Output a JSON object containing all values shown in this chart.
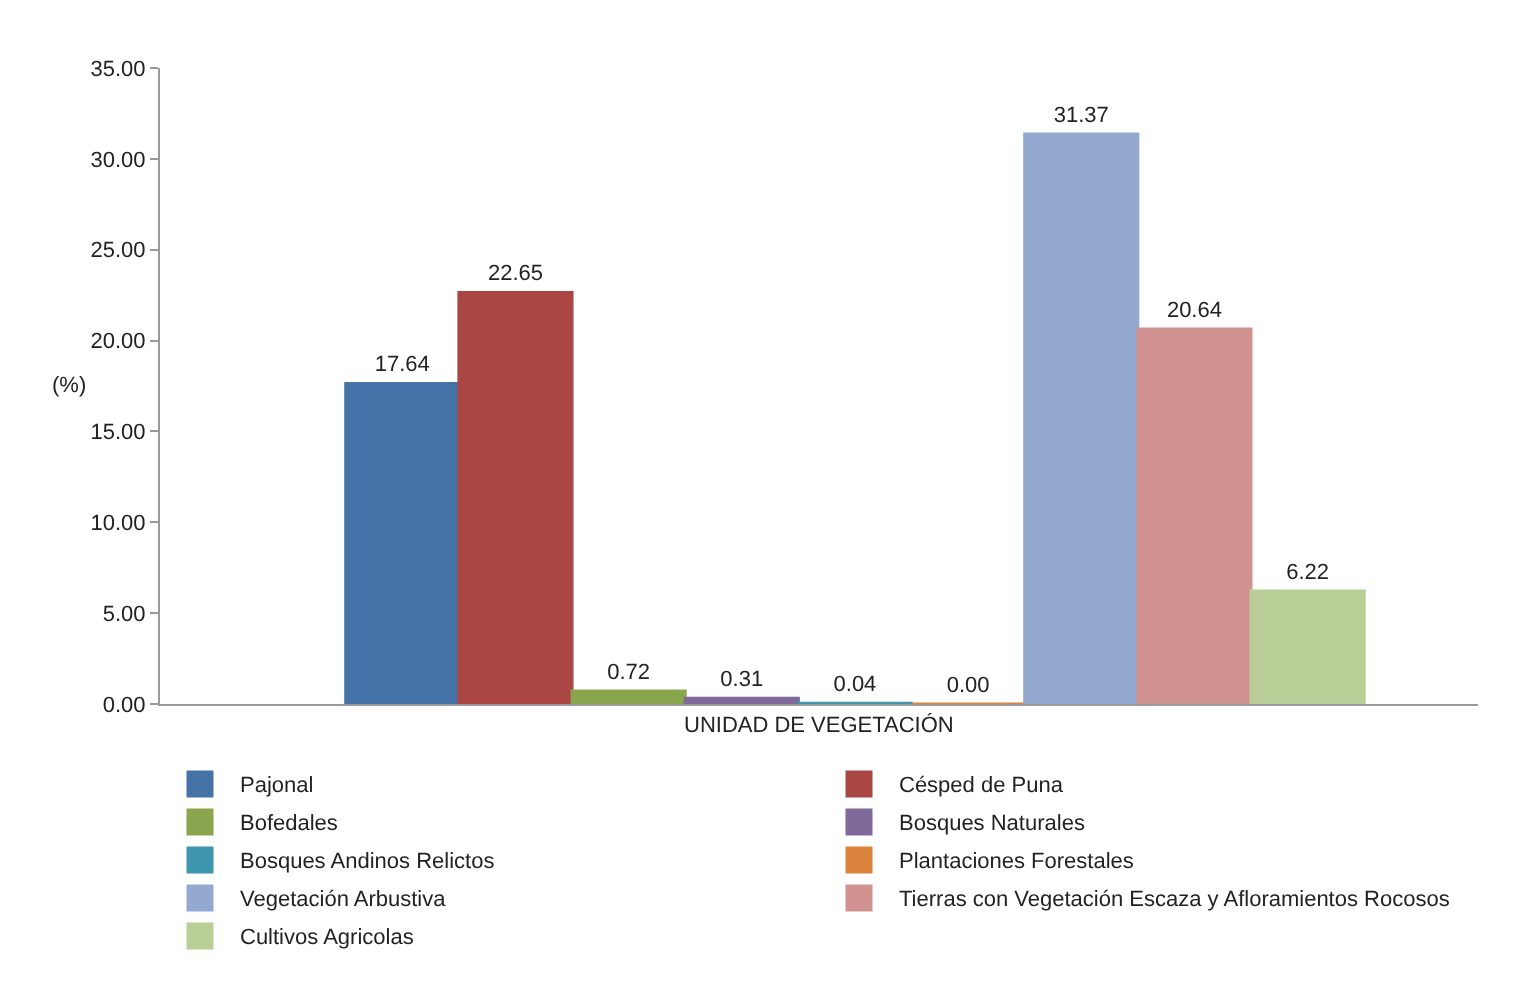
{
  "chart_data": {
    "type": "bar",
    "xlabel": "UNIDAD DE VEGETACIÓN",
    "ylabel": "(%)",
    "categories": [
      null
    ],
    "series": [
      {
        "name": "Pajonal",
        "color": "#4572a7",
        "values": [
          17.64
        ],
        "value_labels": [
          "17.64"
        ]
      },
      {
        "name": "Césped de Puna",
        "color": "#aa4643",
        "values": [
          22.65
        ],
        "value_labels": [
          "22.65"
        ]
      },
      {
        "name": "Bofedales",
        "color": "#89a54e",
        "values": [
          0.72
        ],
        "value_labels": [
          "0.72"
        ]
      },
      {
        "name": "Bosques Naturales",
        "color": "#80699b",
        "values": [
          0.31
        ],
        "value_labels": [
          "0.31"
        ]
      },
      {
        "name": "Bosques Andinos Relictos",
        "color": "#3d96ae",
        "values": [
          0.04
        ],
        "value_labels": [
          "0.04"
        ]
      },
      {
        "name": "Plantaciones Forestales",
        "color": "#db843d",
        "values": [
          0
        ],
        "value_labels": [
          "0.00"
        ]
      },
      {
        "name": "Vegetación Arbustiva",
        "color": "#93a9cf",
        "values": [
          31.37
        ],
        "value_labels": [
          "31.37"
        ]
      },
      {
        "name": "Tierras con Vegetación Escaza y Afloramientos Rocosos",
        "color": "#d19392",
        "values": [
          20.64
        ],
        "value_labels": [
          "20.64"
        ]
      },
      {
        "name": "Cultivos Agricolas",
        "color": "#b9cd96",
        "values": [
          6.22
        ],
        "value_labels": [
          "6.22"
        ]
      }
    ],
    "grid": false,
    "legend": "bottom",
    "ylim": [
      0,
      35
    ],
    "yticks": [
      {
        "value": 0,
        "label": "0.00"
      },
      {
        "value": 5,
        "label": "5.00"
      },
      {
        "value": 10,
        "label": "10.00"
      },
      {
        "value": 15,
        "label": "15.00"
      },
      {
        "value": 20,
        "label": "20.00"
      },
      {
        "value": 25,
        "label": "25.00"
      },
      {
        "value": 30,
        "label": "30.00"
      },
      {
        "value": 35,
        "label": "35.00"
      }
    ]
  }
}
